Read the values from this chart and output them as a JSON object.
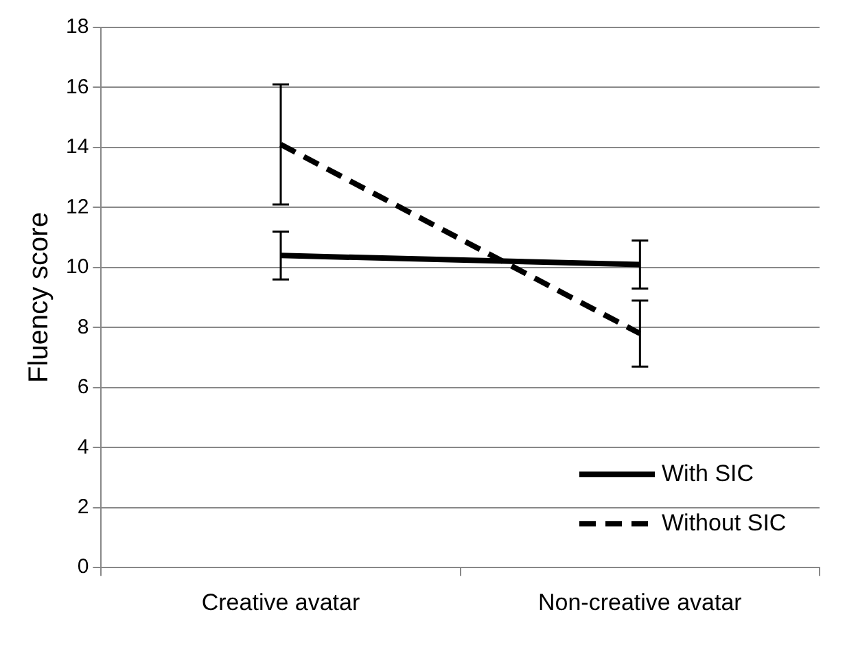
{
  "chart_data": {
    "type": "line",
    "ylabel": "Fluency score",
    "categories": [
      "Creative avatar",
      "Non-creative avatar"
    ],
    "series": [
      {
        "name": "With SIC",
        "color": "#000000",
        "line_style": "solid",
        "values": [
          10.4,
          10.1
        ],
        "errors": [
          0.8,
          0.8
        ]
      },
      {
        "name": "Without SIC",
        "color": "#000000",
        "line_style": "dashed",
        "values": [
          14.1,
          7.8
        ],
        "errors": [
          2.0,
          1.1
        ]
      }
    ],
    "ylim": [
      0,
      18
    ],
    "yticks": [
      0,
      2,
      4,
      6,
      8,
      10,
      12,
      14,
      16,
      18
    ],
    "grid": "y",
    "legend": "bottom right",
    "marker": "none"
  }
}
